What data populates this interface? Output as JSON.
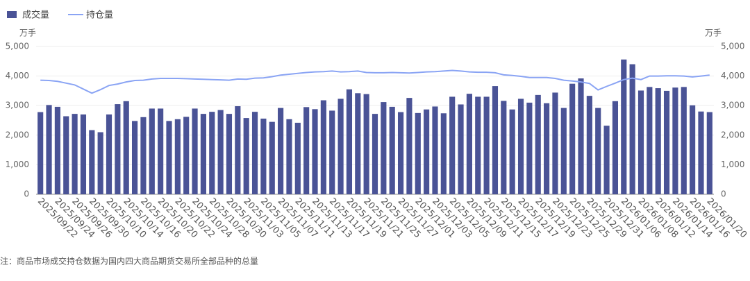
{
  "chart_data": {
    "type": "bar_line",
    "note": "注：商品市场成交持仓数据为国内四大商品期货交易所全部品种的总量",
    "y_unit": "万手",
    "y2_unit": "万手",
    "categories": [
      "2025/09/22",
      null,
      "2025/09/24",
      null,
      "2025/09/26",
      null,
      "2025/09/30",
      null,
      "2025/10/10",
      null,
      "2025/10/14",
      null,
      "2025/10/16",
      null,
      "2025/10/20",
      null,
      "2025/10/22",
      null,
      "2025/10/24",
      null,
      "2025/10/28",
      null,
      "2025/10/30",
      null,
      "2025/11/03",
      null,
      "2025/11/05",
      null,
      "2025/11/07",
      null,
      "2025/11/11",
      null,
      "2025/11/13",
      null,
      "2025/11/17",
      null,
      "2025/11/19",
      null,
      "2025/11/21",
      null,
      "2025/11/25",
      null,
      "2025/11/27",
      null,
      "2025/12/01",
      null,
      "2025/12/03",
      null,
      "2025/12/05",
      null,
      "2025/12/09",
      null,
      "2025/12/11",
      null,
      "2025/12/15",
      null,
      "2025/12/17",
      null,
      "2025/12/19",
      null,
      "2025/12/23",
      null,
      "2025/12/25",
      null,
      "2025/12/29",
      null,
      "2025/12/31",
      null,
      "2026/01/06",
      null,
      "2026/01/08",
      null,
      "2026/01/12",
      null,
      "2026/01/14",
      null,
      "2026/01/16",
      null,
      "2026/01/20"
    ],
    "series": [
      {
        "name": "成交量",
        "type": "bar",
        "color": "#4a5396",
        "values": [
          2780,
          3020,
          2960,
          2640,
          2720,
          2700,
          2170,
          2100,
          2700,
          3050,
          3150,
          2480,
          2610,
          2900,
          2900,
          2480,
          2540,
          2620,
          2900,
          2720,
          2790,
          2850,
          2720,
          2980,
          2580,
          2790,
          2560,
          2450,
          2920,
          2540,
          2420,
          2950,
          2880,
          3180,
          2830,
          3230,
          3550,
          3420,
          3390,
          2720,
          3120,
          2960,
          2780,
          3260,
          2750,
          2870,
          2970,
          2740,
          3300,
          3040,
          3400,
          3300,
          3300,
          3660,
          3160,
          2870,
          3230,
          3100,
          3360,
          3080,
          3440,
          2920,
          3740,
          3920,
          3330,
          2920,
          2320,
          3150,
          4560,
          4400,
          3510,
          3630,
          3590,
          3500,
          3610,
          3630,
          3010,
          2800,
          2780
        ]
      },
      {
        "name": "持仓量",
        "type": "line",
        "axis": "y2",
        "color": "#8aa4f4",
        "values": [
          3860,
          3850,
          3820,
          3760,
          3700,
          3560,
          3420,
          3540,
          3680,
          3730,
          3800,
          3850,
          3860,
          3900,
          3920,
          3920,
          3920,
          3910,
          3900,
          3890,
          3880,
          3870,
          3860,
          3900,
          3890,
          3930,
          3940,
          3980,
          4030,
          4060,
          4090,
          4120,
          4140,
          4150,
          4170,
          4140,
          4150,
          4170,
          4120,
          4110,
          4110,
          4120,
          4110,
          4100,
          4120,
          4140,
          4150,
          4170,
          4190,
          4170,
          4140,
          4130,
          4130,
          4110,
          4040,
          4020,
          3990,
          3950,
          3950,
          3950,
          3920,
          3860,
          3830,
          3800,
          3750,
          3530,
          3650,
          3760,
          3880,
          3930,
          3880,
          4000,
          4000,
          4010,
          4010,
          4000,
          3970,
          4000,
          4030
        ]
      }
    ],
    "ylim": [
      0,
      5000
    ],
    "yticks": [
      0,
      {
        "value": 1000,
        "label": "1,000"
      },
      {
        "value": 2000,
        "label": "2,000"
      },
      {
        "value": 3000,
        "label": "3,000"
      },
      {
        "value": 4000,
        "label": "4,000"
      },
      {
        "value": 5000,
        "label": "5,000"
      }
    ],
    "y2lim": [
      0,
      5000
    ],
    "y2ticks": [
      0,
      {
        "value": 1000,
        "label": "1,000"
      },
      {
        "value": 2000,
        "label": "2,000"
      },
      {
        "value": 3000,
        "label": "3,000"
      },
      {
        "value": 4000,
        "label": "4,000"
      },
      {
        "value": 5000,
        "label": "5,000"
      }
    ],
    "grid": true,
    "legend": "top-left"
  }
}
